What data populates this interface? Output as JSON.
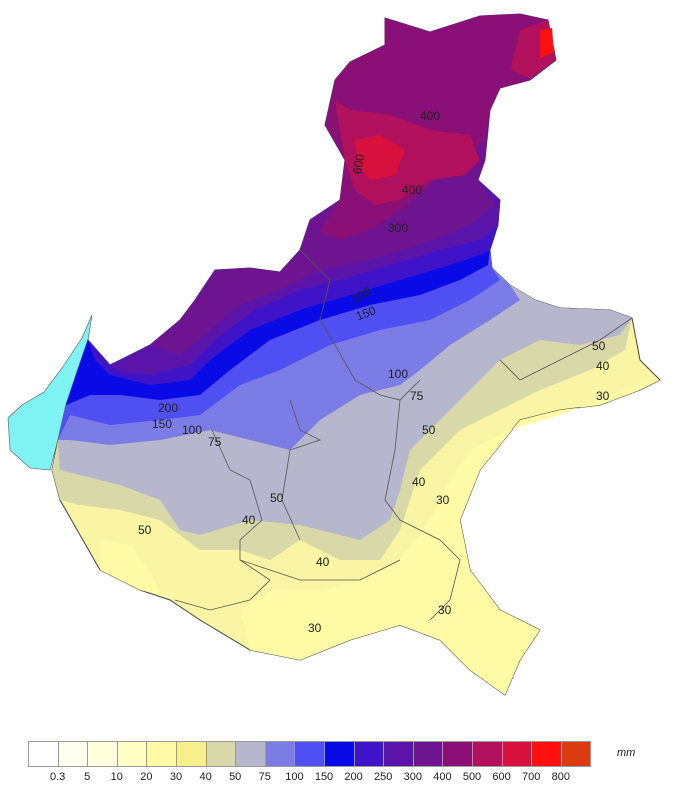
{
  "legend": {
    "unit": "mm",
    "thresholds": [
      "0.3",
      "5",
      "10",
      "20",
      "30",
      "40",
      "50",
      "75",
      "100",
      "150",
      "200",
      "250",
      "300",
      "400",
      "500",
      "600",
      "700",
      "800"
    ],
    "colors": [
      "#ffffff",
      "#fffff0",
      "#ffffde",
      "#ffffc4",
      "#fffaa6",
      "#f7f08c",
      "#d9d8a8",
      "#b6b6cc",
      "#7c7ce6",
      "#4f4ff2",
      "#0a0ae6",
      "#3f14c8",
      "#5a14aa",
      "#6e1490",
      "#8a1078",
      "#b0105c",
      "#d8103e",
      "#ff1010",
      "#d83c10"
    ]
  },
  "isolines": [
    "400",
    "600",
    "400",
    "300",
    "200",
    "150",
    "100",
    "75",
    "50",
    "40",
    "30",
    "50",
    "40",
    "30",
    "50",
    "40",
    "30",
    "30",
    "40",
    "50",
    "200",
    "150",
    "100",
    "75"
  ]
}
